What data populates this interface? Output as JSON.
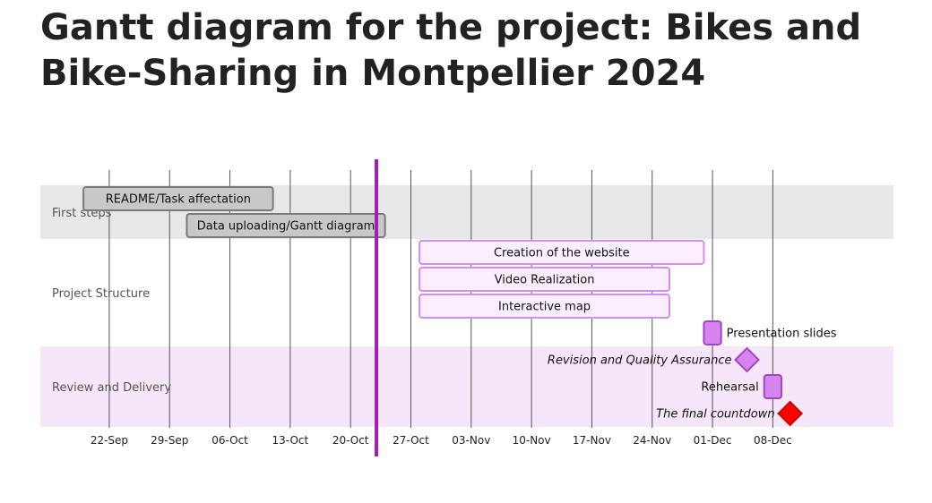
{
  "page": {
    "title": "Gantt diagram for the project: Bikes and Bike-Sharing in Montpellier 2024"
  },
  "chart_data": {
    "type": "gantt",
    "title": "Gantt diagram for the project: Bikes and Bike-Sharing in Montpellier 2024",
    "xlim": [
      "2024-09-14",
      "2024-12-22"
    ],
    "x_ticks": [
      {
        "date": "2024-09-22",
        "label": "22-Sep"
      },
      {
        "date": "2024-09-29",
        "label": "29-Sep"
      },
      {
        "date": "2024-10-06",
        "label": "06-Oct"
      },
      {
        "date": "2024-10-13",
        "label": "13-Oct"
      },
      {
        "date": "2024-10-20",
        "label": "20-Oct"
      },
      {
        "date": "2024-10-27",
        "label": "27-Oct"
      },
      {
        "date": "2024-11-03",
        "label": "03-Nov"
      },
      {
        "date": "2024-11-10",
        "label": "10-Nov"
      },
      {
        "date": "2024-11-17",
        "label": "17-Nov"
      },
      {
        "date": "2024-11-24",
        "label": "24-Nov"
      },
      {
        "date": "2024-12-01",
        "label": "01-Dec"
      },
      {
        "date": "2024-12-08",
        "label": "08-Dec"
      }
    ],
    "today_marker": "2024-10-23",
    "sections": [
      {
        "name": "First steps",
        "band_color": "#e8e8ea",
        "first_row": 0,
        "rows": 2
      },
      {
        "name": "Project Structure",
        "band_color": "#ffffff",
        "first_row": 2,
        "rows": 4
      },
      {
        "name": "Review and Delivery",
        "band_color": "#f5e6fa",
        "first_row": 6,
        "rows": 3
      }
    ],
    "tasks": [
      {
        "name": "README/Task affectation",
        "section": "First steps",
        "type": "done",
        "start": "2024-09-19",
        "end": "2024-10-11",
        "label_pos": "inside"
      },
      {
        "name": "Data uploading/Gantt diagram",
        "section": "First steps",
        "type": "done",
        "start": "2024-10-01",
        "end": "2024-10-24",
        "label_pos": "inside"
      },
      {
        "name": "Creation of the website",
        "section": "Project Structure",
        "type": "active",
        "start": "2024-10-28",
        "end": "2024-11-30",
        "label_pos": "inside"
      },
      {
        "name": "Video Realization",
        "section": "Project Structure",
        "type": "active",
        "start": "2024-10-28",
        "end": "2024-11-26",
        "label_pos": "inside"
      },
      {
        "name": "Interactive map",
        "section": "Project Structure",
        "type": "active",
        "start": "2024-10-28",
        "end": "2024-11-26",
        "label_pos": "inside"
      },
      {
        "name": "Presentation slides",
        "section": "Project Structure",
        "type": "block",
        "start": "2024-11-30",
        "end": "2024-12-02",
        "label_pos": "right"
      },
      {
        "name": "Revision and Quality Assurance",
        "section": "Review and Delivery",
        "type": "milestone",
        "date": "2024-12-05",
        "label_pos": "left"
      },
      {
        "name": "Rehearsal",
        "section": "Review and Delivery",
        "type": "block",
        "start": "2024-12-07",
        "end": "2024-12-09",
        "label_pos": "left"
      },
      {
        "name": "The final countdown",
        "section": "Review and Delivery",
        "type": "critical-milestone",
        "date": "2024-12-10",
        "label_pos": "left"
      }
    ],
    "colors": {
      "done_fill": "#c8c8c8",
      "done_stroke": "#7a7a7a",
      "active_fill": "#fbeefe",
      "active_stroke": "#d48ee8",
      "block_fill": "#d784f0",
      "block_stroke": "#a046c0",
      "milestone_fill": "#d784f0",
      "critical_fill": "#ff0000",
      "critical_stroke": "#c80000",
      "today_line": "#a020b0",
      "grid": "#555555"
    },
    "grid": true
  }
}
